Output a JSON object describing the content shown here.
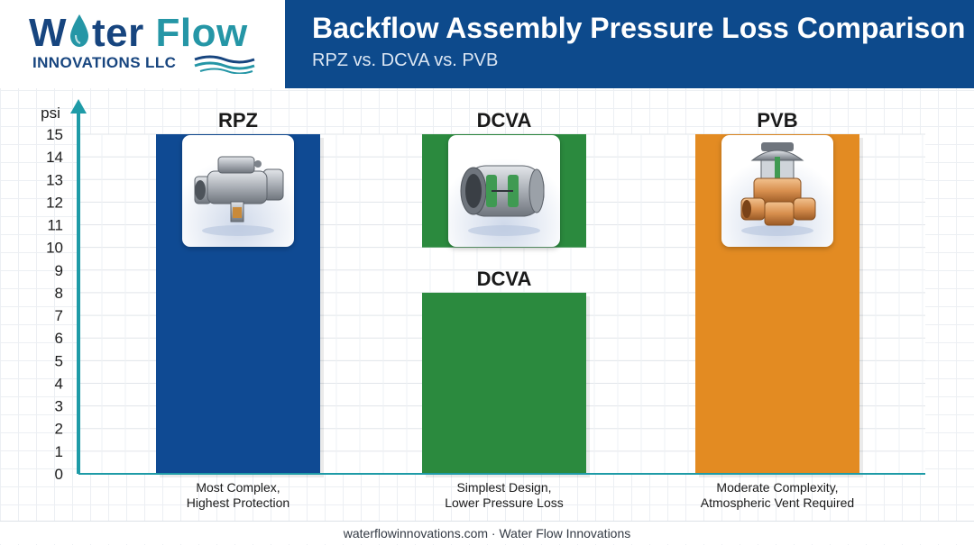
{
  "logo": {
    "word1_pre": "W",
    "word1_post": "ter",
    "word2": "Flow",
    "subline": "INNOVATIONS LLC",
    "icons": [
      "water-drop-icon",
      "wave-icon"
    ]
  },
  "header": {
    "title": "Backflow Assembly Pressure Loss Comparison",
    "subtitle": "RPZ vs. DCVA vs. PVB"
  },
  "footer": {
    "text": "waterflowinnovations.com · Water Flow Innovations"
  },
  "colors": {
    "header_bg": "#0d4a8c",
    "rpz": "#0f4a93",
    "dcva": "#2b8a3e",
    "pvb": "#e38b22",
    "axis": "#1e9ba7"
  },
  "chart_data": {
    "type": "bar",
    "ylabel": "psi",
    "ylim": [
      0,
      15
    ],
    "yticks": [
      0,
      1,
      2,
      3,
      4,
      5,
      6,
      7,
      8,
      9,
      10,
      11,
      12,
      13,
      14,
      15
    ],
    "grid": true,
    "categories": [
      "RPZ",
      "DCVA",
      "PVB"
    ],
    "bars": [
      {
        "category": "RPZ",
        "label": "RPZ",
        "value": 15,
        "color": "#0f4a93",
        "icon": "rpz-valve-icon",
        "description": [
          "Most Complex,",
          "Highest Protection"
        ]
      },
      {
        "category": "DCVA",
        "label": "DCVA",
        "value": 8,
        "color": "#2b8a3e",
        "icon": "dcva-valve-icon",
        "description": [
          "Simplest Design,",
          "Lower Pressure Loss"
        ],
        "upper_segment": {
          "label": "DCVA",
          "from": 10,
          "to": 15
        }
      },
      {
        "category": "PVB",
        "label": "PVB",
        "value": 15,
        "color": "#e38b22",
        "icon": "pvb-valve-icon",
        "description": [
          "Moderate Complexity,",
          "Atmospheric Vent Required"
        ]
      }
    ]
  }
}
